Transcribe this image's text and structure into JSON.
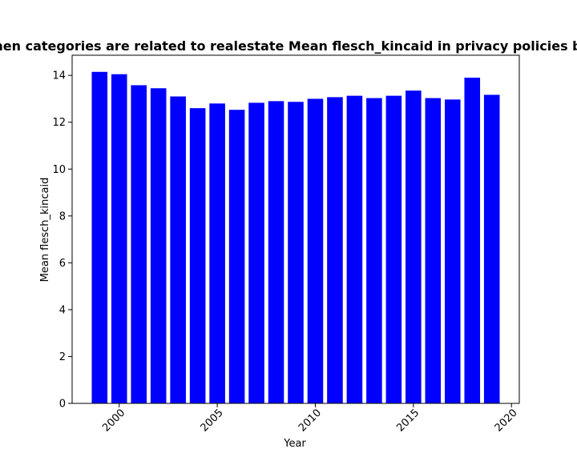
{
  "chart_data": {
    "type": "bar",
    "title": "When categories are related to realestate Mean flesch_kincaid in privacy policies by Year",
    "xlabel": "Year",
    "ylabel": "Mean flesch_kincaid",
    "x": [
      1999,
      2000,
      2001,
      2002,
      2003,
      2004,
      2005,
      2006,
      2007,
      2008,
      2009,
      2010,
      2011,
      2012,
      2013,
      2014,
      2015,
      2016,
      2017,
      2018,
      2019
    ],
    "values": [
      14.15,
      14.05,
      13.58,
      13.45,
      13.1,
      12.6,
      12.8,
      12.53,
      12.83,
      12.9,
      12.87,
      13.0,
      13.07,
      13.13,
      13.03,
      13.13,
      13.35,
      13.03,
      12.97,
      13.9,
      13.17
    ],
    "xlim": [
      1997.6,
      2020.4
    ],
    "ylim": [
      0,
      14.86
    ],
    "xticks": [
      2000,
      2005,
      2010,
      2015,
      2020
    ],
    "yticks": [
      0,
      2,
      4,
      6,
      8,
      10,
      12,
      14
    ],
    "bar_color": "#0000ff",
    "grid": false,
    "legend": "none"
  }
}
